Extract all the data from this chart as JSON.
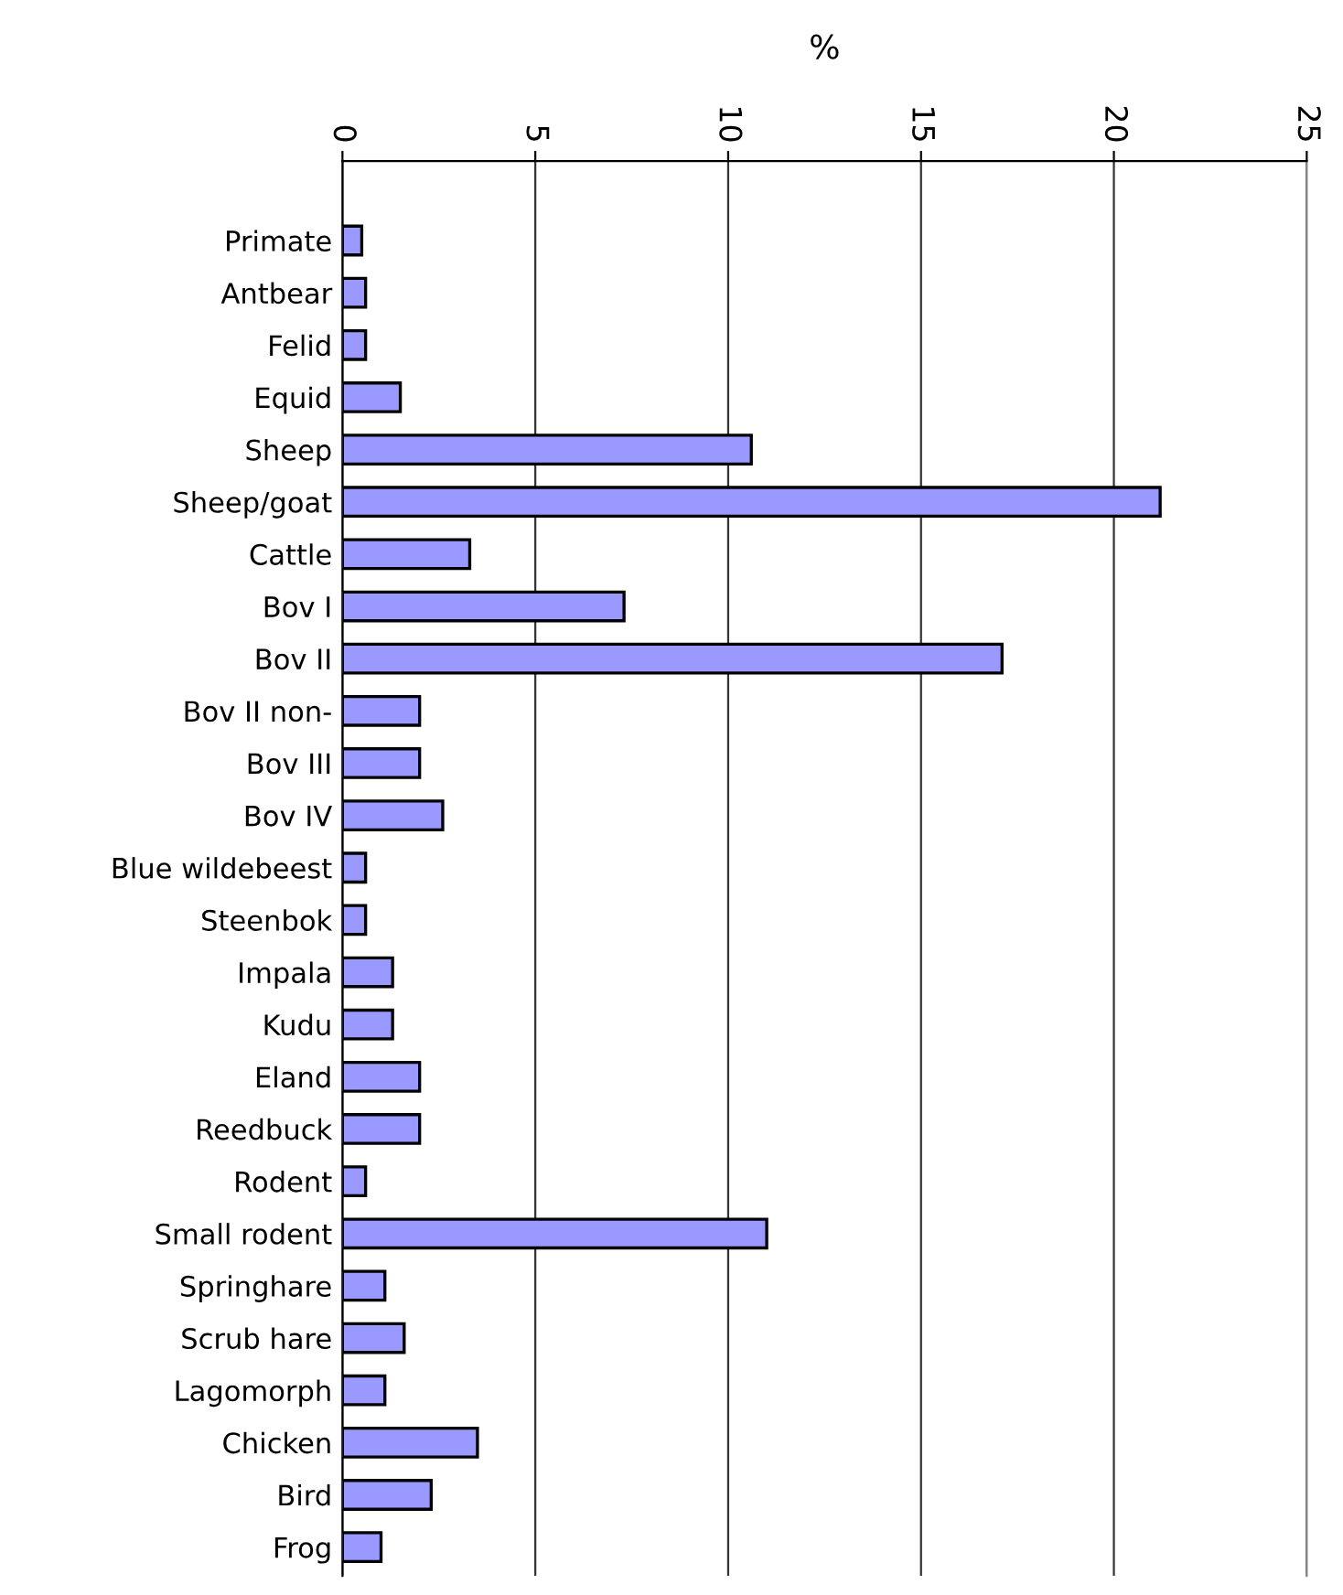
{
  "chart_data": {
    "type": "bar",
    "orientation": "horizontal",
    "xlabel": "%",
    "categories": [
      "Primate",
      "Antbear",
      "Felid",
      "Equid",
      "Sheep",
      "Sheep/goat",
      "Cattle",
      "Bov I",
      "Bov II",
      "Bov II non-",
      "Bov III",
      "Bov IV",
      "Blue wildebeest",
      "Steenbok",
      "Impala",
      "Kudu",
      "Eland",
      "Reedbuck",
      "Rodent",
      "Small rodent",
      "Springhare",
      "Scrub hare",
      "Lagomorph",
      "Chicken",
      "Bird",
      "Frog"
    ],
    "values": [
      0.5,
      0.6,
      0.6,
      1.5,
      10.6,
      21.2,
      3.3,
      7.3,
      17.1,
      2.0,
      2.0,
      2.6,
      0.6,
      0.6,
      1.3,
      1.3,
      2.0,
      2.0,
      0.6,
      11.0,
      1.1,
      1.6,
      1.1,
      3.5,
      2.3,
      1.0
    ],
    "color": "#9999ff",
    "xlim": [
      0,
      25
    ],
    "xticks": [
      0,
      5,
      10,
      15,
      20,
      25
    ],
    "grid": "x",
    "legend": false
  }
}
